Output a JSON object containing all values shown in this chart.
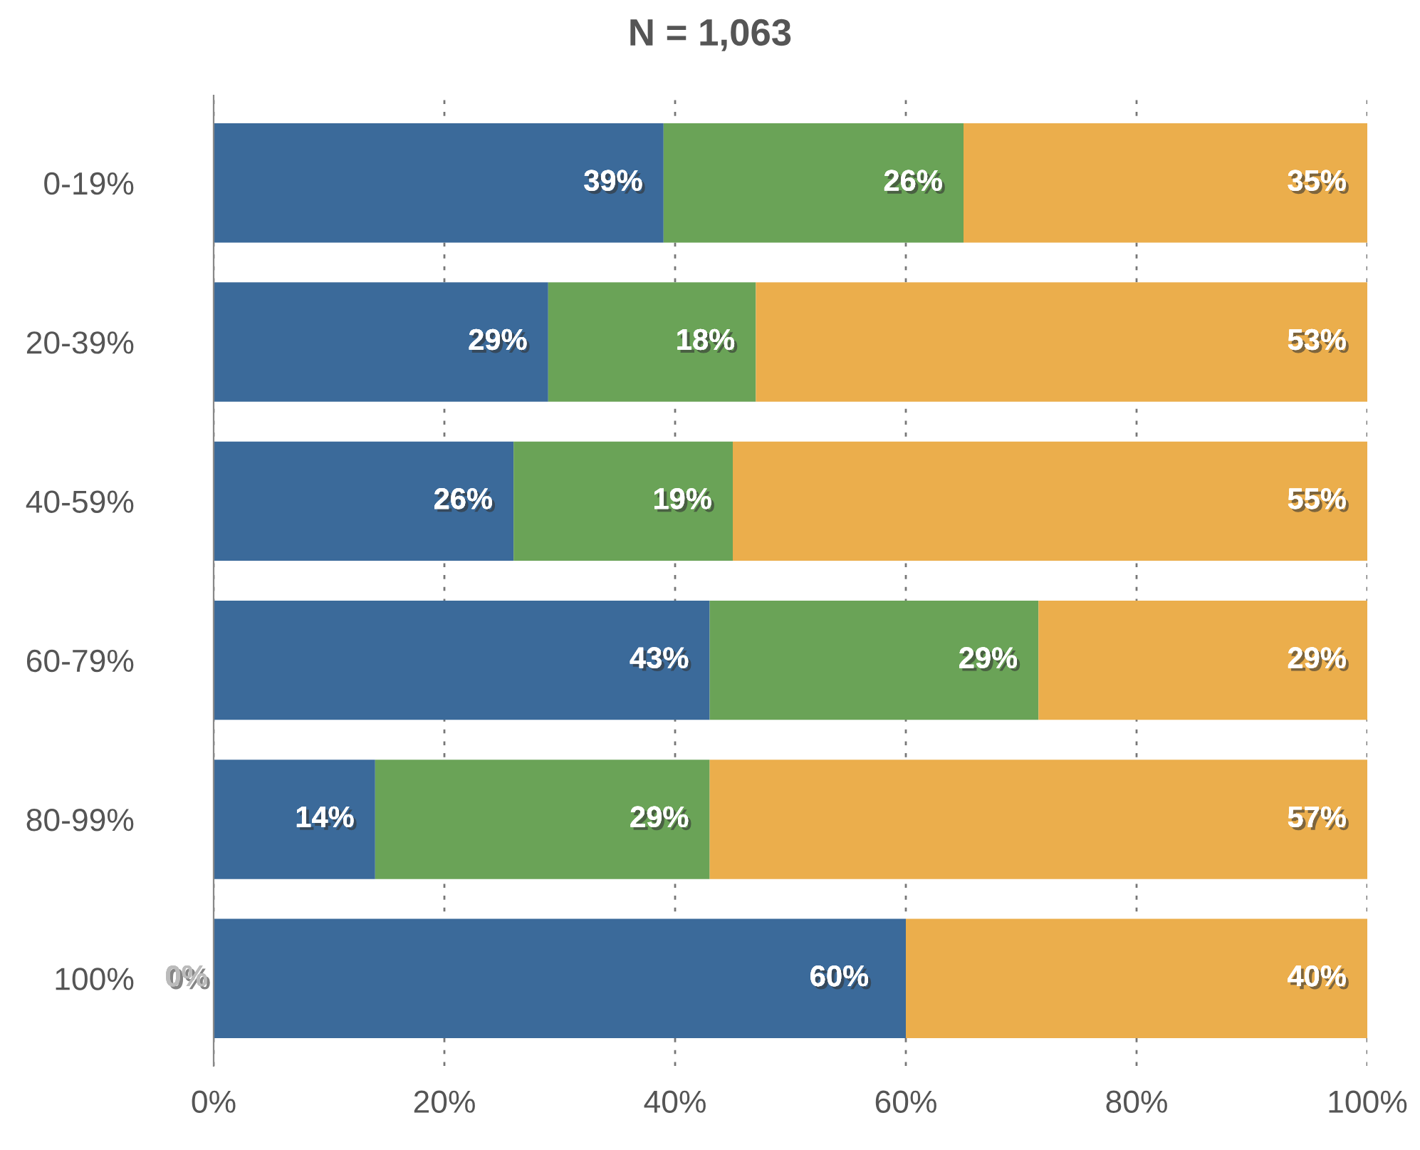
{
  "chart_data": {
    "type": "bar",
    "orientation": "horizontal",
    "stacked": true,
    "title": "N = 1,063",
    "categories": [
      "0-19%",
      "20-39%",
      "40-59%",
      "60-79%",
      "80-99%",
      "100%"
    ],
    "series": [
      {
        "color": "#3b6a9a",
        "values": [
          39,
          29,
          26,
          43,
          14,
          60
        ],
        "value_labels": [
          "39%",
          "29%",
          "26%",
          "43%",
          "14%",
          "60%"
        ]
      },
      {
        "color": "#6aa357",
        "values": [
          26,
          18,
          19,
          28.5,
          29,
          0
        ],
        "value_labels": [
          "26%",
          "18%",
          "19%",
          "29%",
          "29%",
          null
        ]
      },
      {
        "color": "#ebae4c",
        "values": [
          35,
          53,
          55,
          28.5,
          57,
          40
        ],
        "value_labels": [
          "35%",
          "53%",
          "55%",
          "29%",
          "57%",
          "40%"
        ]
      }
    ],
    "xlim": [
      0,
      100
    ],
    "xticks": [
      {
        "value": 0,
        "label": "0%"
      },
      {
        "value": 20,
        "label": "20%"
      },
      {
        "value": 40,
        "label": "40%"
      },
      {
        "value": 60,
        "label": "60%"
      },
      {
        "value": 80,
        "label": "80%"
      },
      {
        "value": 100,
        "label": "100%"
      }
    ],
    "grid": "x",
    "legend": false,
    "annotations": [
      {
        "text": "0%",
        "x": 0,
        "y": "100%"
      }
    ]
  }
}
